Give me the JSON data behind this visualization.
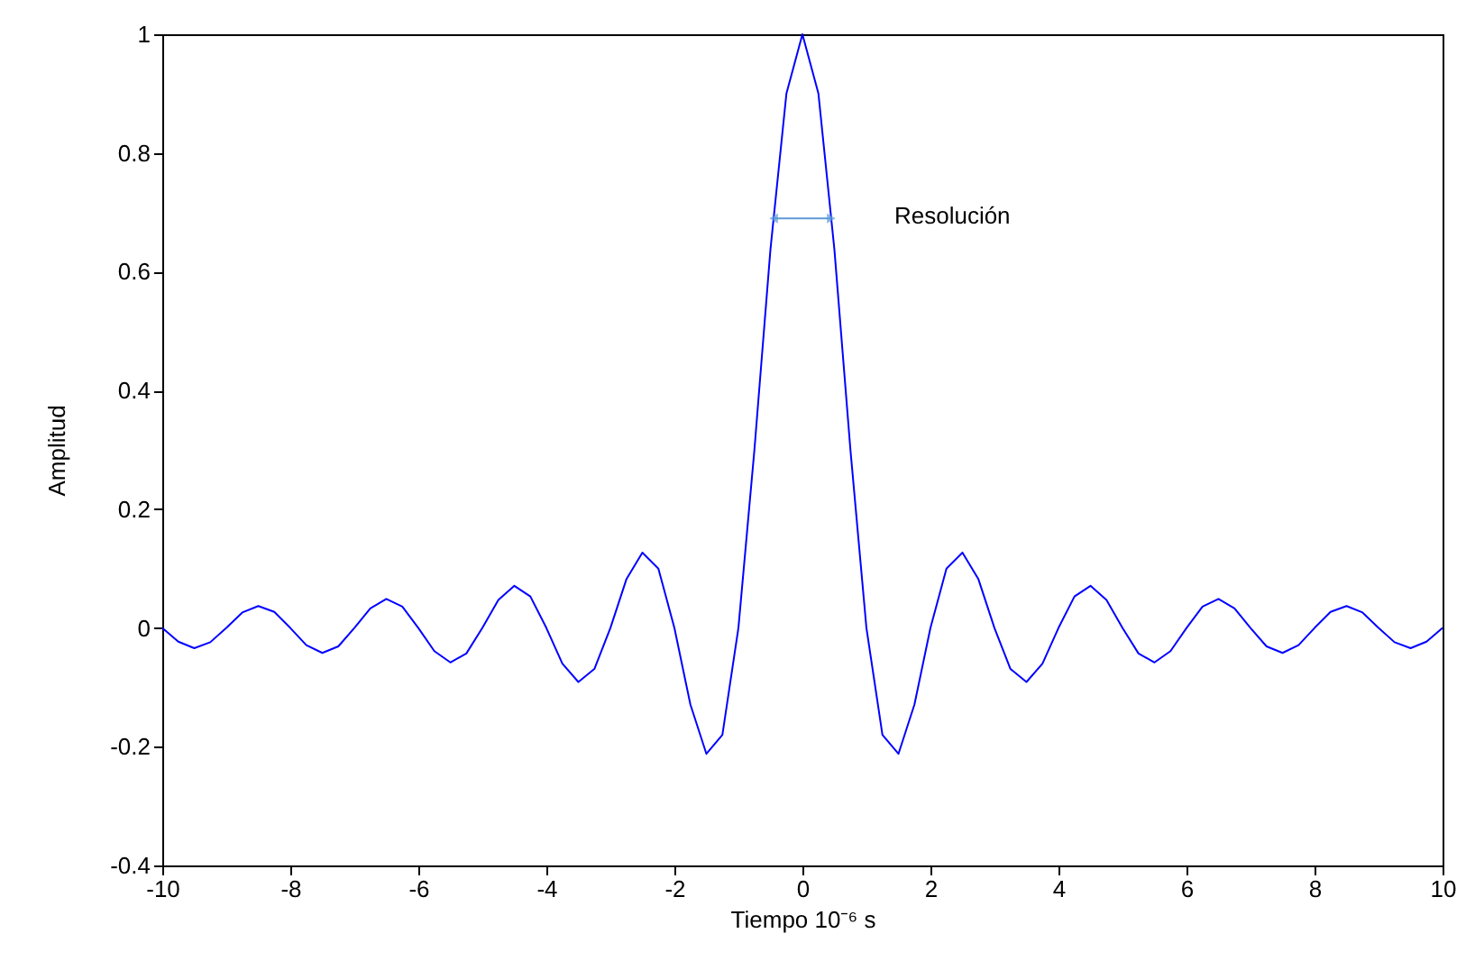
{
  "chart_data": {
    "type": "line",
    "xlabel": "Tiempo 10⁻⁶ s",
    "ylabel": "Amplitud",
    "x": [
      -10,
      -9.75,
      -9.5,
      -9.25,
      -9,
      -8.75,
      -8.5,
      -8.25,
      -8,
      -7.75,
      -7.5,
      -7.25,
      -7,
      -6.75,
      -6.5,
      -6.25,
      -6,
      -5.75,
      -5.5,
      -5.25,
      -5,
      -4.75,
      -4.5,
      -4.25,
      -4,
      -3.75,
      -3.5,
      -3.25,
      -3,
      -2.75,
      -2.5,
      -2.25,
      -2,
      -1.75,
      -1.5,
      -1.25,
      -1,
      -0.75,
      -0.5,
      -0.25,
      0,
      0.25,
      0.5,
      0.75,
      1,
      1.25,
      1.5,
      1.75,
      2,
      2.25,
      2.5,
      2.75,
      3,
      3.25,
      3.5,
      3.75,
      4,
      4.25,
      4.5,
      4.75,
      5,
      5.25,
      5.5,
      5.75,
      6,
      6.25,
      6.5,
      6.75,
      7,
      7.25,
      7.5,
      7.75,
      8,
      8.25,
      8.5,
      8.75,
      9,
      9.25,
      9.5,
      9.75,
      10
    ],
    "series": [
      {
        "color": "#0000ff",
        "values": [
          0,
          -0.023,
          -0.034,
          -0.024,
          0,
          0.026,
          0.037,
          0.027,
          0,
          -0.029,
          -0.042,
          -0.031,
          0,
          0.033,
          0.049,
          0.036,
          0,
          -0.039,
          -0.058,
          -0.043,
          0,
          0.047,
          0.071,
          0.053,
          0,
          -0.06,
          -0.091,
          -0.069,
          0,
          0.082,
          0.127,
          0.1,
          0,
          -0.129,
          -0.212,
          -0.18,
          0,
          0.3,
          0.637,
          0.9,
          1,
          0.9,
          0.637,
          0.3,
          0,
          -0.18,
          -0.212,
          -0.129,
          0,
          0.1,
          0.127,
          0.082,
          0,
          -0.069,
          -0.091,
          -0.06,
          0,
          0.053,
          0.071,
          0.047,
          0,
          -0.043,
          -0.058,
          -0.039,
          0,
          0.036,
          0.049,
          0.033,
          0,
          -0.031,
          -0.042,
          -0.029,
          0,
          0.027,
          0.037,
          0.026,
          0,
          -0.024,
          -0.034,
          -0.023,
          0
        ]
      }
    ],
    "xlim": [
      -10,
      10
    ],
    "xticks": [
      -10,
      -8,
      -6,
      -4,
      -2,
      0,
      2,
      4,
      6,
      8,
      10
    ],
    "ylim": [
      -0.4,
      1
    ],
    "yticks": [
      -0.4,
      -0.2,
      0,
      0.2,
      0.4,
      0.6,
      0.8,
      1
    ],
    "grid": false,
    "annotations": [
      {
        "text": "Resolución",
        "x": 0.45,
        "y": 0.69
      }
    ]
  }
}
